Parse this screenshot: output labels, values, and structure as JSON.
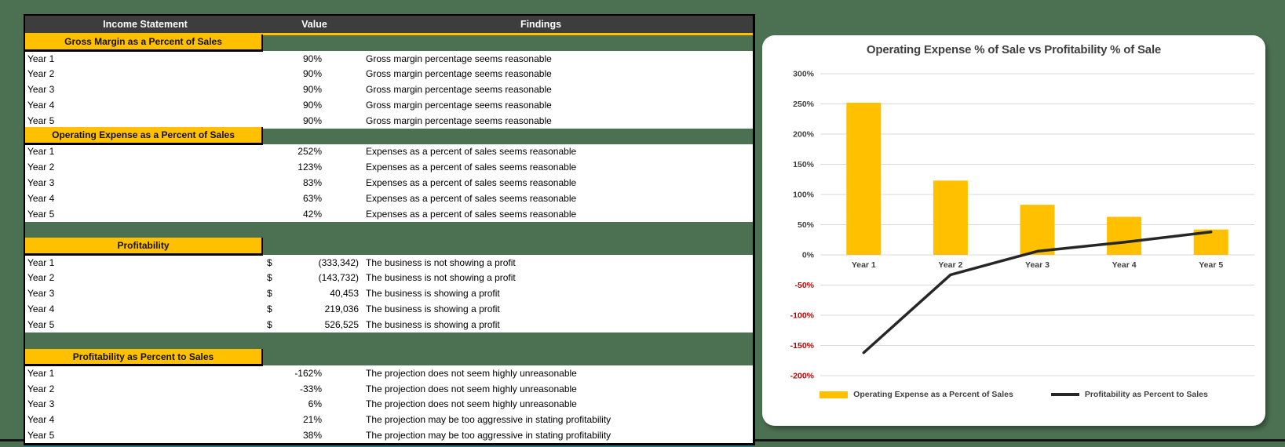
{
  "colors": {
    "background_green": "#4C7152",
    "header_dark": "#3D3D3D",
    "accent_yellow": "#FFC000",
    "negative_red": "#C00000",
    "line_dark": "#262626",
    "gridline": "#D9D9D9",
    "bottom_blue_rule": "#2E75B6"
  },
  "table": {
    "headers": [
      "Income Statement",
      "Value",
      "Findings"
    ],
    "sections": [
      {
        "title": "Gross Margin as a Percent of Sales",
        "gap_before": false,
        "rows": [
          {
            "label": "Year 1",
            "value": "90%",
            "finding": "Gross margin percentage seems reasonable"
          },
          {
            "label": "Year 2",
            "value": "90%",
            "finding": "Gross margin percentage seems reasonable"
          },
          {
            "label": "Year 3",
            "value": "90%",
            "finding": "Gross margin percentage seems reasonable"
          },
          {
            "label": "Year 4",
            "value": "90%",
            "finding": "Gross margin percentage seems reasonable"
          },
          {
            "label": "Year 5",
            "value": "90%",
            "finding": "Gross margin percentage seems reasonable"
          }
        ]
      },
      {
        "title": "Operating Expense as a Percent of Sales",
        "gap_before": false,
        "rows": [
          {
            "label": "Year 1",
            "value": "252%",
            "finding": "Expenses as a percent of sales seems reasonable"
          },
          {
            "label": "Year 2",
            "value": "123%",
            "finding": "Expenses as a percent of sales seems reasonable"
          },
          {
            "label": "Year 3",
            "value": "83%",
            "finding": "Expenses as a percent of sales seems reasonable"
          },
          {
            "label": "Year 4",
            "value": "63%",
            "finding": "Expenses as a percent of sales seems reasonable"
          },
          {
            "label": "Year 5",
            "value": "42%",
            "finding": "Expenses as a percent of sales seems reasonable"
          }
        ]
      },
      {
        "title": "Profitability",
        "gap_before": true,
        "rows": [
          {
            "label": "Year 1",
            "currency": "$",
            "value": "(333,342)",
            "finding": "The business is not showing a profit"
          },
          {
            "label": "Year 2",
            "currency": "$",
            "value": "(143,732)",
            "finding": "The business is not showing a profit"
          },
          {
            "label": "Year 3",
            "currency": "$",
            "value": "40,453",
            "finding": "The business is showing a profit"
          },
          {
            "label": "Year 4",
            "currency": "$",
            "value": "219,036",
            "finding": "The business is showing a profit"
          },
          {
            "label": "Year 5",
            "currency": "$",
            "value": "526,525",
            "finding": "The business is showing a profit"
          }
        ]
      },
      {
        "title": "Profitability as Percent to Sales",
        "gap_before": true,
        "rows": [
          {
            "label": "Year 1",
            "value": "-162%",
            "finding": "The projection does not seem highly unreasonable"
          },
          {
            "label": "Year 2",
            "value": "-33%",
            "finding": "The projection does not seem highly unreasonable"
          },
          {
            "label": "Year 3",
            "value": "6%",
            "finding": "The projection does not seem highly unreasonable"
          },
          {
            "label": "Year 4",
            "value": "21%",
            "finding": "The projection may be too aggressive in stating profitability"
          },
          {
            "label": "Year 5",
            "value": "38%",
            "finding": "The projection may be too aggressive in stating profitability"
          }
        ]
      }
    ]
  },
  "chart_data": {
    "type": "bar",
    "subtype": "bar-line combo",
    "title": "Operating Expense % of Sale vs Profitability % of Sale",
    "categories": [
      "Year 1",
      "Year 2",
      "Year 3",
      "Year 4",
      "Year 5"
    ],
    "series": [
      {
        "name": "Operating Expense as a Percent of Sales",
        "type": "bar",
        "color": "#FFC000",
        "values": [
          252,
          123,
          83,
          63,
          42
        ]
      },
      {
        "name": "Profitability as Percent to Sales",
        "type": "line",
        "color": "#262626",
        "values": [
          -162,
          -33,
          6,
          21,
          38
        ]
      }
    ],
    "xlabel": "",
    "ylabel": "",
    "ylim": [
      -200,
      300
    ],
    "y_step": 50,
    "tick_format": "percent",
    "negative_tick_color": "#C00000",
    "grid": true,
    "legend_position": "bottom"
  }
}
